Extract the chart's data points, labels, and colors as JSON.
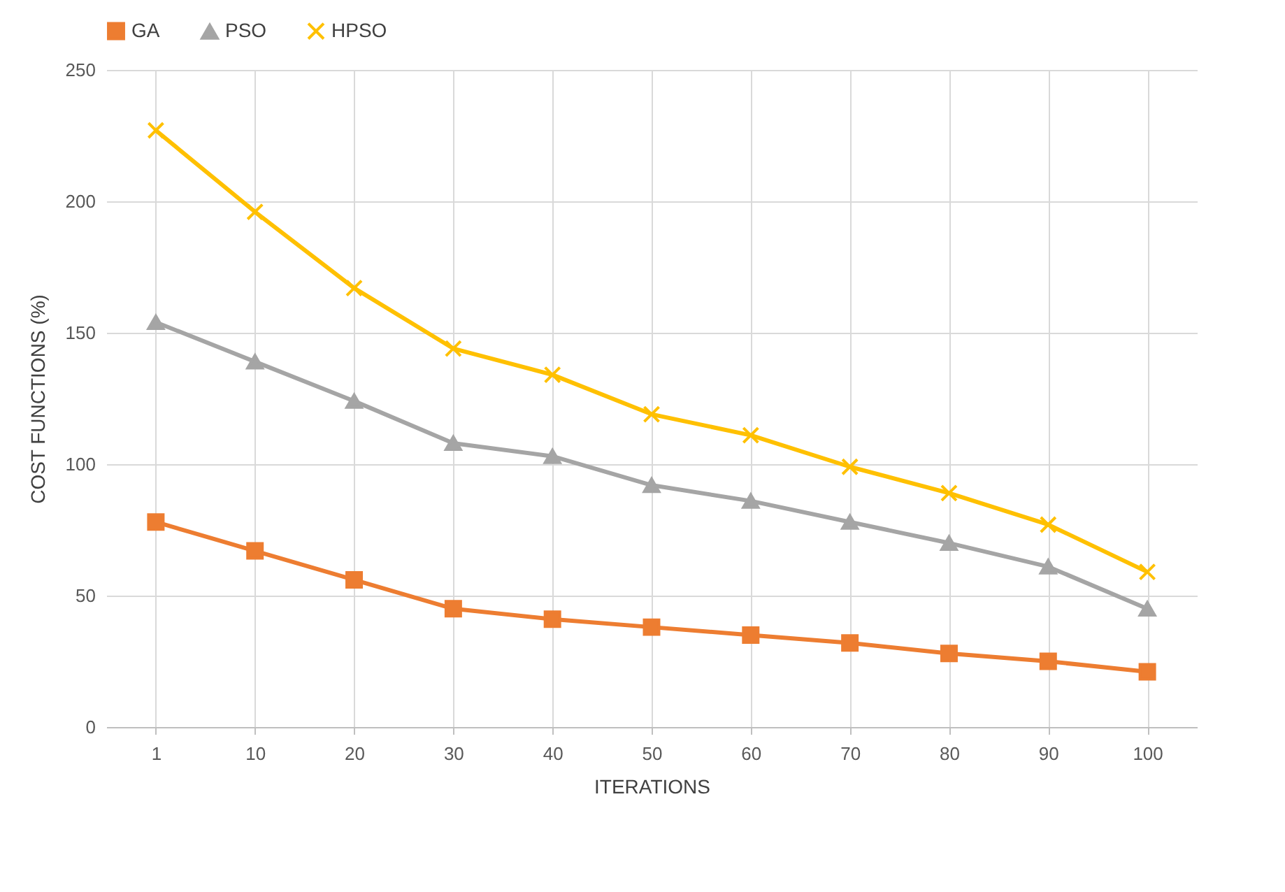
{
  "chart_data": {
    "type": "line",
    "xlabel": "ITERATIONS",
    "ylabel": "COST FUNCTIONS (%)",
    "categories": [
      "1",
      "10",
      "20",
      "30",
      "40",
      "50",
      "60",
      "70",
      "80",
      "90",
      "100"
    ],
    "series": [
      {
        "name": "GA",
        "color": "#ed7d31",
        "marker": "square",
        "values": [
          78,
          67,
          56,
          45,
          41,
          38,
          35,
          32,
          28,
          25,
          21
        ]
      },
      {
        "name": "PSO",
        "color": "#a5a5a5",
        "marker": "triangle",
        "values": [
          154,
          139,
          124,
          108,
          103,
          92,
          86,
          78,
          70,
          61,
          45
        ]
      },
      {
        "name": "HPSO",
        "color": "#ffc000",
        "marker": "cross",
        "values": [
          227,
          196,
          167,
          144,
          134,
          119,
          111,
          99,
          89,
          77,
          59
        ]
      }
    ],
    "ylim": [
      0,
      250
    ],
    "yticks": [
      0,
      50,
      100,
      150,
      200,
      250
    ],
    "grid": true,
    "legend": "top",
    "line_style": "solid"
  }
}
